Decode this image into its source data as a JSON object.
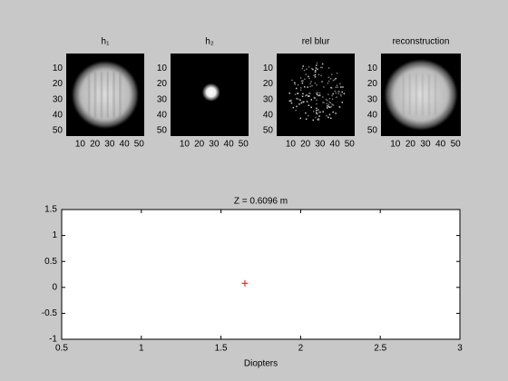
{
  "chart_data": [
    {
      "type": "image",
      "title": "h₁",
      "xlim": [
        0.5,
        53.5
      ],
      "ylim": [
        0.5,
        53.5
      ],
      "ydir": "reverse",
      "xticks": [
        10,
        20,
        30,
        40,
        50
      ],
      "yticks": [
        10,
        20,
        30,
        40,
        50
      ]
    },
    {
      "type": "image",
      "title": "h₂",
      "xlim": [
        0.5,
        53.5
      ],
      "ylim": [
        0.5,
        53.5
      ],
      "ydir": "reverse",
      "xticks": [
        10,
        20,
        30,
        40,
        50
      ],
      "yticks": [
        10,
        20,
        30,
        40,
        50
      ]
    },
    {
      "type": "image",
      "title": "rel blur",
      "xlim": [
        0.5,
        53.5
      ],
      "ylim": [
        0.5,
        53.5
      ],
      "ydir": "reverse",
      "xticks": [
        10,
        20,
        30,
        40,
        50
      ],
      "yticks": [
        10,
        20,
        30,
        40,
        50
      ]
    },
    {
      "type": "image",
      "title": "reconstruction",
      "xlim": [
        0.5,
        53.5
      ],
      "ylim": [
        0.5,
        53.5
      ],
      "ydir": "reverse",
      "xticks": [
        10,
        20,
        30,
        40,
        50
      ],
      "yticks": [
        10,
        20,
        30,
        40,
        50
      ]
    },
    {
      "type": "scatter",
      "title": "Z = 0.6096 m",
      "x_label": "Diopters",
      "x": [
        1.65
      ],
      "y": [
        0.08
      ],
      "color": "#ff0000",
      "marker": "+",
      "xlim": [
        0.5,
        3
      ],
      "ylim": [
        -1,
        1.5
      ],
      "xticks": [
        0.5,
        1,
        1.5,
        2,
        2.5,
        3
      ],
      "yticks": [
        -1,
        -0.5,
        0,
        0.5,
        1,
        1.5
      ]
    }
  ]
}
